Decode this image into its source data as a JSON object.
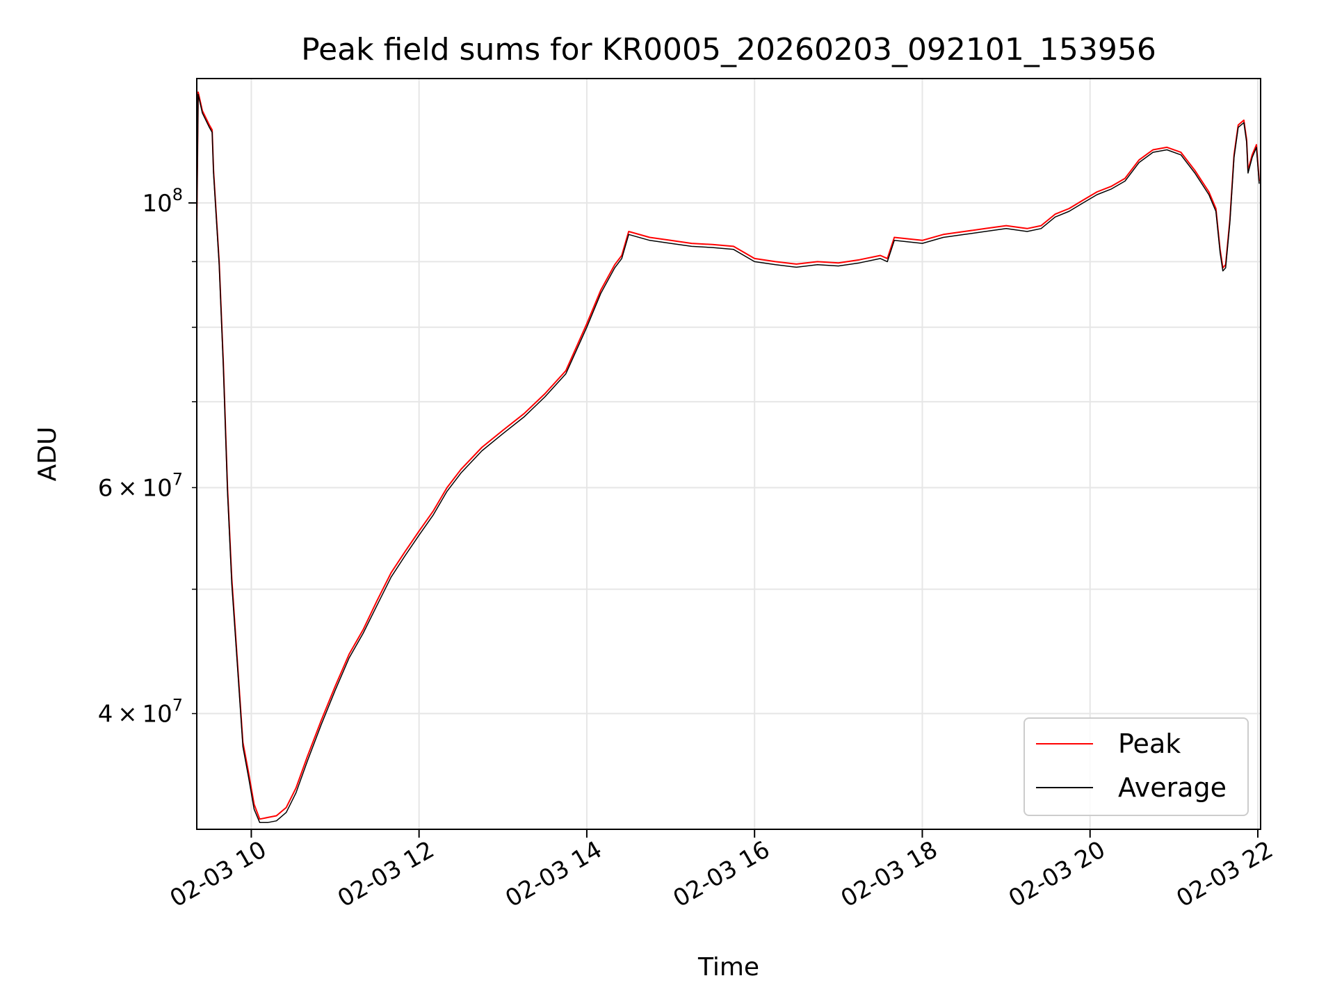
{
  "chart_data": {
    "type": "line",
    "title": "Peak field sums for KR0005_20260203_092101_153956",
    "xlabel": "Time",
    "ylabel": "ADU",
    "xlim": [
      "02-03 09:21",
      "02-03 22:02"
    ],
    "ylim": [
      32500000,
      125000000
    ],
    "yscale": "log",
    "grid": true,
    "legend": "bottom-right",
    "x_ticks": [
      {
        "value": "02-03 10:00",
        "label": "02-03 10"
      },
      {
        "value": "02-03 12:00",
        "label": "02-03 12"
      },
      {
        "value": "02-03 14:00",
        "label": "02-03 14"
      },
      {
        "value": "02-03 16:00",
        "label": "02-03 16"
      },
      {
        "value": "02-03 18:00",
        "label": "02-03 18"
      },
      {
        "value": "02-03 20:00",
        "label": "02-03 20"
      },
      {
        "value": "02-03 22:00",
        "label": "02-03 22"
      }
    ],
    "y_ticks_major": [
      {
        "value": 100000000,
        "base": "10",
        "exp": "8"
      }
    ],
    "y_ticks_minor": [
      {
        "value": 40000000,
        "mantissa": "4",
        "base": "10",
        "exp": "7"
      },
      {
        "value": 50000000,
        "mantissa": "",
        "base": "",
        "exp": ""
      },
      {
        "value": 60000000,
        "mantissa": "6",
        "base": "10",
        "exp": "7"
      },
      {
        "value": 70000000,
        "mantissa": "",
        "base": "",
        "exp": ""
      },
      {
        "value": 80000000,
        "mantissa": "",
        "base": "",
        "exp": ""
      },
      {
        "value": 90000000,
        "mantissa": "",
        "base": "",
        "exp": ""
      }
    ],
    "series": [
      {
        "name": "Peak",
        "color": "#ff0000",
        "points": [
          [
            "02-03 09:21",
            96000000
          ],
          [
            "02-03 09:22",
            122000000
          ],
          [
            "02-03 09:25",
            118000000
          ],
          [
            "02-03 09:30",
            115000000
          ],
          [
            "02-03 09:32",
            114000000
          ],
          [
            "02-03 09:33",
            106000000
          ],
          [
            "02-03 09:37",
            90000000
          ],
          [
            "02-03 09:40",
            75000000
          ],
          [
            "02-03 09:43",
            60000000
          ],
          [
            "02-03 09:46",
            51000000
          ],
          [
            "02-03 09:50",
            44000000
          ],
          [
            "02-03 09:54",
            38000000
          ],
          [
            "02-03 09:58",
            36000000
          ],
          [
            "02-03 10:02",
            34000000
          ],
          [
            "02-03 10:06",
            33100000
          ],
          [
            "02-03 10:12",
            33200000
          ],
          [
            "02-03 10:18",
            33300000
          ],
          [
            "02-03 10:25",
            33800000
          ],
          [
            "02-03 10:32",
            35000000
          ],
          [
            "02-03 10:40",
            37000000
          ],
          [
            "02-03 10:50",
            39500000
          ],
          [
            "02-03 11:00",
            42000000
          ],
          [
            "02-03 11:10",
            44500000
          ],
          [
            "02-03 11:20",
            46500000
          ],
          [
            "02-03 11:30",
            49000000
          ],
          [
            "02-03 11:40",
            51500000
          ],
          [
            "02-03 11:50",
            53500000
          ],
          [
            "02-03 12:00",
            55500000
          ],
          [
            "02-03 12:10",
            57500000
          ],
          [
            "02-03 12:20",
            60000000
          ],
          [
            "02-03 12:30",
            62000000
          ],
          [
            "02-03 12:45",
            64500000
          ],
          [
            "02-03 13:00",
            66500000
          ],
          [
            "02-03 13:15",
            68500000
          ],
          [
            "02-03 13:30",
            71000000
          ],
          [
            "02-03 13:45",
            74000000
          ],
          [
            "02-03 14:00",
            80500000
          ],
          [
            "02-03 14:10",
            85500000
          ],
          [
            "02-03 14:20",
            89500000
          ],
          [
            "02-03 14:25",
            91000000
          ],
          [
            "02-03 14:30",
            95000000
          ],
          [
            "02-03 14:45",
            94000000
          ],
          [
            "02-03 15:00",
            93500000
          ],
          [
            "02-03 15:15",
            93000000
          ],
          [
            "02-03 15:30",
            92800000
          ],
          [
            "02-03 15:45",
            92500000
          ],
          [
            "02-03 16:00",
            90500000
          ],
          [
            "02-03 16:15",
            90000000
          ],
          [
            "02-03 16:30",
            89600000
          ],
          [
            "02-03 16:45",
            90000000
          ],
          [
            "02-03 17:00",
            89800000
          ],
          [
            "02-03 17:15",
            90300000
          ],
          [
            "02-03 17:30",
            91000000
          ],
          [
            "02-03 17:35",
            90500000
          ],
          [
            "02-03 17:40",
            94000000
          ],
          [
            "02-03 18:00",
            93500000
          ],
          [
            "02-03 18:15",
            94500000
          ],
          [
            "02-03 18:30",
            95000000
          ],
          [
            "02-03 18:45",
            95500000
          ],
          [
            "02-03 19:00",
            96000000
          ],
          [
            "02-03 19:15",
            95500000
          ],
          [
            "02-03 19:25",
            96000000
          ],
          [
            "02-03 19:35",
            98000000
          ],
          [
            "02-03 19:45",
            99000000
          ],
          [
            "02-03 19:55",
            100500000
          ],
          [
            "02-03 20:05",
            102000000
          ],
          [
            "02-03 20:15",
            103000000
          ],
          [
            "02-03 20:25",
            104500000
          ],
          [
            "02-03 20:35",
            108000000
          ],
          [
            "02-03 20:45",
            110000000
          ],
          [
            "02-03 20:55",
            110500000
          ],
          [
            "02-03 21:05",
            109500000
          ],
          [
            "02-03 21:15",
            106000000
          ],
          [
            "02-03 21:25",
            102000000
          ],
          [
            "02-03 21:30",
            99000000
          ],
          [
            "02-03 21:33",
            92000000
          ],
          [
            "02-03 21:35",
            89000000
          ],
          [
            "02-03 21:37",
            89500000
          ],
          [
            "02-03 21:40",
            97000000
          ],
          [
            "02-03 21:43",
            109000000
          ],
          [
            "02-03 21:46",
            115000000
          ],
          [
            "02-03 21:50",
            116000000
          ],
          [
            "02-03 21:52",
            112000000
          ],
          [
            "02-03 21:53",
            106000000
          ],
          [
            "02-03 21:56",
            109000000
          ],
          [
            "02-03 21:59",
            111000000
          ],
          [
            "02-03 22:01",
            104000000
          ]
        ]
      },
      {
        "name": "Average",
        "color": "#000000",
        "points": [
          [
            "02-03 09:21",
            95500000
          ],
          [
            "02-03 09:22",
            121500000
          ],
          [
            "02-03 09:25",
            117500000
          ],
          [
            "02-03 09:30",
            114500000
          ],
          [
            "02-03 09:32",
            113500000
          ],
          [
            "02-03 09:33",
            105500000
          ],
          [
            "02-03 09:37",
            89500000
          ],
          [
            "02-03 09:40",
            74500000
          ],
          [
            "02-03 09:43",
            59500000
          ],
          [
            "02-03 09:46",
            50500000
          ],
          [
            "02-03 09:50",
            43700000
          ],
          [
            "02-03 09:54",
            37700000
          ],
          [
            "02-03 09:58",
            35700000
          ],
          [
            "02-03 10:02",
            33700000
          ],
          [
            "02-03 10:06",
            32900000
          ],
          [
            "02-03 10:12",
            32900000
          ],
          [
            "02-03 10:18",
            33000000
          ],
          [
            "02-03 10:25",
            33500000
          ],
          [
            "02-03 10:32",
            34700000
          ],
          [
            "02-03 10:40",
            36700000
          ],
          [
            "02-03 10:50",
            39200000
          ],
          [
            "02-03 11:00",
            41700000
          ],
          [
            "02-03 11:10",
            44200000
          ],
          [
            "02-03 11:20",
            46200000
          ],
          [
            "02-03 11:30",
            48600000
          ],
          [
            "02-03 11:40",
            51100000
          ],
          [
            "02-03 11:50",
            53100000
          ],
          [
            "02-03 12:00",
            55100000
          ],
          [
            "02-03 12:10",
            57100000
          ],
          [
            "02-03 12:20",
            59600000
          ],
          [
            "02-03 12:30",
            61600000
          ],
          [
            "02-03 12:45",
            64100000
          ],
          [
            "02-03 13:00",
            66100000
          ],
          [
            "02-03 13:15",
            68100000
          ],
          [
            "02-03 13:30",
            70600000
          ],
          [
            "02-03 13:45",
            73600000
          ],
          [
            "02-03 14:00",
            80000000
          ],
          [
            "02-03 14:10",
            85000000
          ],
          [
            "02-03 14:20",
            89000000
          ],
          [
            "02-03 14:25",
            90500000
          ],
          [
            "02-03 14:30",
            94500000
          ],
          [
            "02-03 14:45",
            93500000
          ],
          [
            "02-03 15:00",
            93000000
          ],
          [
            "02-03 15:15",
            92500000
          ],
          [
            "02-03 15:30",
            92300000
          ],
          [
            "02-03 15:45",
            92000000
          ],
          [
            "02-03 16:00",
            90000000
          ],
          [
            "02-03 16:15",
            89500000
          ],
          [
            "02-03 16:30",
            89100000
          ],
          [
            "02-03 16:45",
            89500000
          ],
          [
            "02-03 17:00",
            89300000
          ],
          [
            "02-03 17:15",
            89800000
          ],
          [
            "02-03 17:30",
            90500000
          ],
          [
            "02-03 17:35",
            90000000
          ],
          [
            "02-03 17:40",
            93500000
          ],
          [
            "02-03 18:00",
            93000000
          ],
          [
            "02-03 18:15",
            94000000
          ],
          [
            "02-03 18:30",
            94500000
          ],
          [
            "02-03 18:45",
            95000000
          ],
          [
            "02-03 19:00",
            95500000
          ],
          [
            "02-03 19:15",
            95000000
          ],
          [
            "02-03 19:25",
            95500000
          ],
          [
            "02-03 19:35",
            97500000
          ],
          [
            "02-03 19:45",
            98500000
          ],
          [
            "02-03 19:55",
            100000000
          ],
          [
            "02-03 20:05",
            101500000
          ],
          [
            "02-03 20:15",
            102500000
          ],
          [
            "02-03 20:25",
            104000000
          ],
          [
            "02-03 20:35",
            107500000
          ],
          [
            "02-03 20:45",
            109500000
          ],
          [
            "02-03 20:55",
            110000000
          ],
          [
            "02-03 21:05",
            109000000
          ],
          [
            "02-03 21:15",
            105500000
          ],
          [
            "02-03 21:25",
            101500000
          ],
          [
            "02-03 21:30",
            98500000
          ],
          [
            "02-03 21:33",
            91500000
          ],
          [
            "02-03 21:35",
            88500000
          ],
          [
            "02-03 21:37",
            89000000
          ],
          [
            "02-03 21:40",
            96500000
          ],
          [
            "02-03 21:43",
            108500000
          ],
          [
            "02-03 21:46",
            114500000
          ],
          [
            "02-03 21:50",
            115500000
          ],
          [
            "02-03 21:52",
            111500000
          ],
          [
            "02-03 21:53",
            105500000
          ],
          [
            "02-03 21:56",
            108500000
          ],
          [
            "02-03 21:59",
            110500000
          ],
          [
            "02-03 22:01",
            103500000
          ]
        ]
      }
    ]
  }
}
